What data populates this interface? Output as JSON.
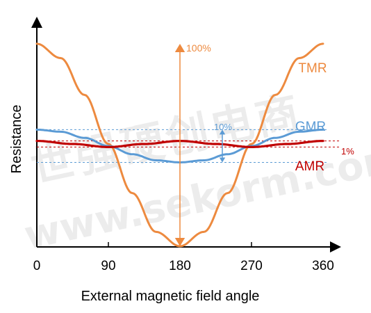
{
  "chart_data": {
    "type": "line",
    "xlabel": "External magnetic field angle",
    "ylabel": "Resistance",
    "xlim": [
      0,
      360
    ],
    "ylim": [
      0,
      1
    ],
    "x_ticks": [
      0,
      90,
      180,
      270,
      360
    ],
    "grid": false,
    "series": [
      {
        "name": "TMR",
        "color": "#ED8A3F",
        "x": [
          0,
          30,
          60,
          90,
          120,
          150,
          180,
          210,
          240,
          270,
          300,
          330,
          360
        ],
        "y": [
          0.99,
          0.92,
          0.74,
          0.5,
          0.26,
          0.07,
          0.0,
          0.07,
          0.26,
          0.5,
          0.74,
          0.92,
          0.99
        ]
      },
      {
        "name": "GMR",
        "color": "#5B9BD5",
        "x": [
          0,
          30,
          60,
          90,
          120,
          150,
          180,
          210,
          240,
          270,
          300,
          330,
          360
        ],
        "y": [
          0.57,
          0.56,
          0.53,
          0.49,
          0.45,
          0.42,
          0.41,
          0.42,
          0.45,
          0.49,
          0.53,
          0.56,
          0.57
        ]
      },
      {
        "name": "AMR",
        "color": "#C00000",
        "x": [
          0,
          45,
          90,
          135,
          180,
          225,
          270,
          315,
          360
        ],
        "y": [
          0.515,
          0.5,
          0.485,
          0.5,
          0.515,
          0.5,
          0.485,
          0.5,
          0.515
        ]
      }
    ],
    "annotations": [
      {
        "text": "100%",
        "series": "TMR",
        "color": "#ED8A3F"
      },
      {
        "text": "10%",
        "series": "GMR",
        "color": "#5B9BD5"
      },
      {
        "text": "1%",
        "series": "AMR",
        "color": "#C00000"
      }
    ]
  },
  "watermark": {
    "cjk": "世强硬创电商",
    "latin": "www.sekorm.com"
  }
}
